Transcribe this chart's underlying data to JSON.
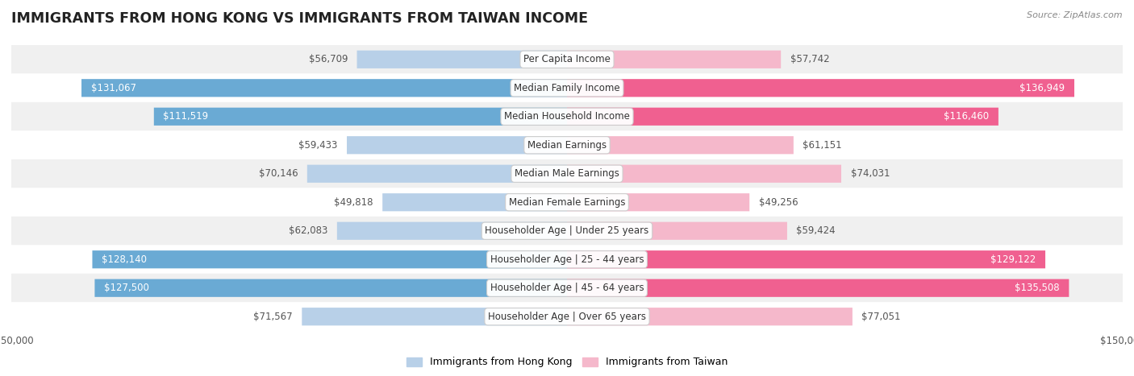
{
  "title": "IMMIGRANTS FROM HONG KONG VS IMMIGRANTS FROM TAIWAN INCOME",
  "source": "Source: ZipAtlas.com",
  "categories": [
    "Per Capita Income",
    "Median Family Income",
    "Median Household Income",
    "Median Earnings",
    "Median Male Earnings",
    "Median Female Earnings",
    "Householder Age | Under 25 years",
    "Householder Age | 25 - 44 years",
    "Householder Age | 45 - 64 years",
    "Householder Age | Over 65 years"
  ],
  "hk_values": [
    56709,
    131067,
    111519,
    59433,
    70146,
    49818,
    62083,
    128140,
    127500,
    71567
  ],
  "tw_values": [
    57742,
    136949,
    116460,
    61151,
    74031,
    49256,
    59424,
    129122,
    135508,
    77051
  ],
  "hk_labels": [
    "$56,709",
    "$131,067",
    "$111,519",
    "$59,433",
    "$70,146",
    "$49,818",
    "$62,083",
    "$128,140",
    "$127,500",
    "$71,567"
  ],
  "tw_labels": [
    "$57,742",
    "$136,949",
    "$116,460",
    "$61,151",
    "$74,031",
    "$49,256",
    "$59,424",
    "$129,122",
    "$135,508",
    "$77,051"
  ],
  "hk_color_light": "#b8d0e8",
  "hk_color_dark": "#6aaad4",
  "tw_color_light": "#f5b8cb",
  "tw_color_dark": "#f06090",
  "inside_label_color": "#ffffff",
  "outside_label_color": "#555555",
  "legend_hk": "Immigrants from Hong Kong",
  "legend_tw": "Immigrants from Taiwan",
  "xlim": 150000,
  "bar_height": 0.62,
  "row_bg_even": "#f0f0f0",
  "row_bg_odd": "#ffffff",
  "background_color": "#ffffff",
  "title_fontsize": 12.5,
  "label_fontsize": 8.5,
  "category_fontsize": 8.5,
  "axis_fontsize": 8.5,
  "source_fontsize": 8,
  "legend_fontsize": 9,
  "inside_threshold": 90000
}
